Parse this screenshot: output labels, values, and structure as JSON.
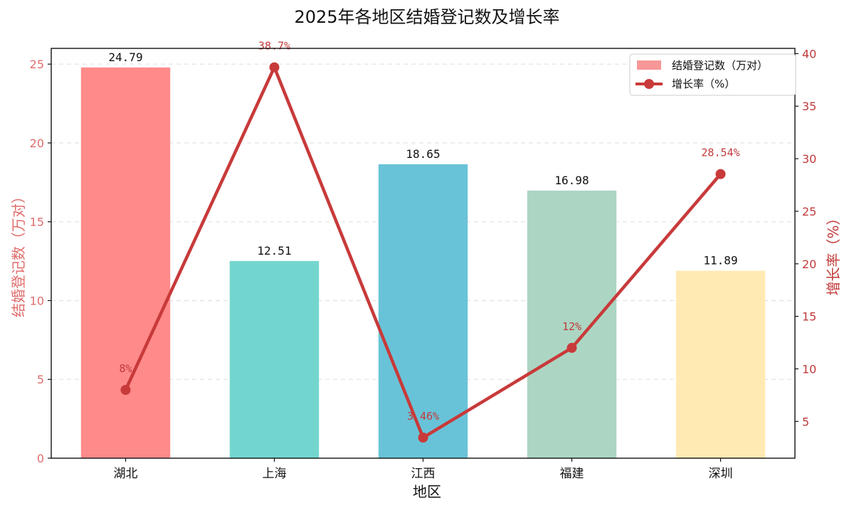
{
  "chart_data": {
    "type": "bar",
    "title": "2025年各地区结婚登记数及增长率",
    "xlabel": "地区",
    "ylabel": "结婚登记数（万对）",
    "y2label": "增长率（%）",
    "categories": [
      "湖北",
      "上海",
      "江西",
      "福建",
      "深圳"
    ],
    "ylim": [
      0,
      26
    ],
    "yticks": [
      0,
      5,
      10,
      15,
      20,
      25
    ],
    "y2lim": [
      1.5,
      40.5
    ],
    "y2ticks": [
      5,
      10,
      15,
      20,
      25,
      30,
      35,
      40
    ],
    "grid": true,
    "legend_position": "top-right",
    "series": [
      {
        "name": "结婚登记数（万对）",
        "kind": "bar",
        "axis": "left",
        "values": [
          24.79,
          12.51,
          18.65,
          16.98,
          11.89
        ],
        "labels": [
          "24.79",
          "12.51",
          "18.65",
          "16.98",
          "11.89"
        ],
        "colors": [
          "#ff8a8a",
          "#72d6cf",
          "#69c3d8",
          "#acd6c3",
          "#ffeab3"
        ]
      },
      {
        "name": "增长率（%）",
        "kind": "line",
        "axis": "right",
        "values": [
          8,
          38.7,
          3.46,
          12,
          28.54
        ],
        "labels": [
          "8%",
          "38.7%",
          "3.46%",
          "12%",
          "28.54%"
        ],
        "color": "#c83a3a"
      }
    ],
    "legend_colors": {
      "bar": "#f79797",
      "line": "#c83a3a"
    }
  }
}
